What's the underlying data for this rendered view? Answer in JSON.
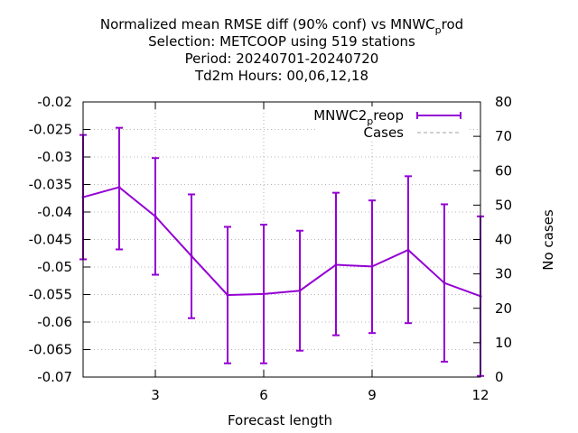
{
  "title_lines": [
    "Normalized mean RMSE diff (90% conf) vs MNWC",
    "Selection: METCOOP using   519 stations",
    "Period: 20240701-20240720",
    "Td2m   Hours:  00,06,12,18"
  ],
  "title_suffix": {
    "sub": "p",
    "rest": "rod"
  },
  "colors": {
    "series": "#9400d3",
    "cases": "#a0a0a0",
    "grid": "#a0a0a0",
    "axis": "#000000"
  },
  "chart_data": {
    "type": "line",
    "xlabel": "Forecast length",
    "ylabel": "",
    "y2label": "No cases",
    "xlim": [
      1,
      12
    ],
    "ylim": [
      -0.07,
      -0.02
    ],
    "y2lim": [
      0,
      80
    ],
    "xticks": [
      "3",
      "6",
      "9",
      "12"
    ],
    "xtick_values": [
      3,
      6,
      9,
      12
    ],
    "yticks": [
      "-0.02",
      "-0.025",
      "-0.03",
      "-0.035",
      "-0.04",
      "-0.045",
      "-0.05",
      "-0.055",
      "-0.06",
      "-0.065",
      "-0.07"
    ],
    "ytick_values": [
      -0.02,
      -0.025,
      -0.03,
      -0.035,
      -0.04,
      -0.045,
      -0.05,
      -0.055,
      -0.06,
      -0.065,
      -0.07
    ],
    "y2ticks": [
      "80",
      "70",
      "60",
      "50",
      "40",
      "30",
      "20",
      "10",
      "0"
    ],
    "y2tick_values": [
      80,
      70,
      60,
      50,
      40,
      30,
      20,
      10,
      0
    ],
    "grid": true,
    "legend_position": "top-right",
    "series": [
      {
        "name": "MNWC2",
        "name_sub": "p",
        "name_rest": "reop",
        "style": "line-errorbars",
        "x": [
          1,
          2,
          3,
          4,
          5,
          6,
          7,
          8,
          9,
          10,
          11,
          12
        ],
        "y": [
          -0.0373,
          -0.0355,
          -0.0408,
          -0.048,
          -0.0551,
          -0.0549,
          -0.0543,
          -0.0496,
          -0.0499,
          -0.0469,
          -0.0529,
          -0.0553
        ],
        "y_low": [
          -0.0486,
          -0.0468,
          -0.0514,
          -0.0593,
          -0.0675,
          -0.0675,
          -0.0652,
          -0.0624,
          -0.062,
          -0.0602,
          -0.0672,
          -0.0698
        ],
        "y_high": [
          -0.026,
          -0.0247,
          -0.0302,
          -0.0368,
          -0.0427,
          -0.0423,
          -0.0434,
          -0.0365,
          -0.0379,
          -0.0335,
          -0.0386,
          -0.0408
        ]
      },
      {
        "name": "Cases",
        "style": "dashed",
        "axis": "right",
        "x": [
          1,
          2,
          3,
          4,
          5,
          6,
          7,
          8,
          9,
          10,
          11,
          12
        ],
        "y": [
          80,
          80,
          80,
          80,
          80,
          80,
          80,
          80,
          80,
          80,
          80,
          80
        ]
      }
    ]
  }
}
